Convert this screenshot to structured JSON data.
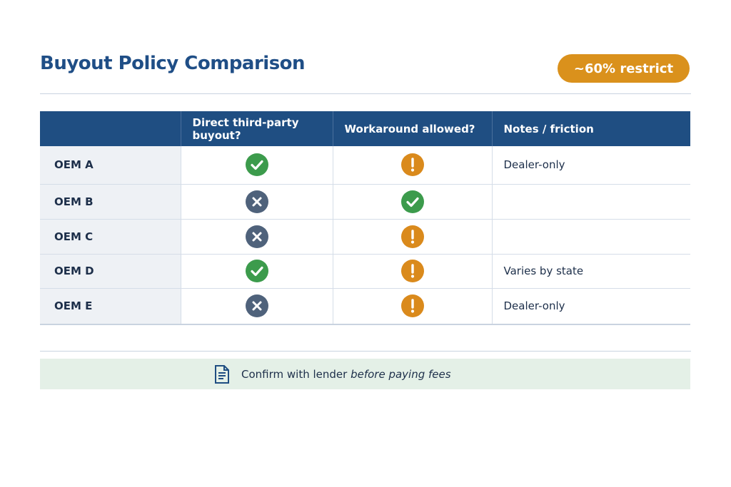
{
  "header": {
    "title": "Buyout Policy Comparison",
    "badge": "~60% restrict"
  },
  "table": {
    "columns": [
      "Direct third-party buyout?",
      "Workaround allowed?",
      "Notes / friction"
    ],
    "rows": [
      {
        "label": "OEM A",
        "notes": "Dealer-only"
      },
      {
        "label": "OEM B"
      },
      {
        "label": "OEM C"
      },
      {
        "label": "OEM D",
        "notes": "Varies by state"
      },
      {
        "label": "OEM E",
        "notes": "Dealer-only"
      }
    ]
  },
  "footer": {
    "text": "Confirm with lender",
    "emphasis": "before paying fees"
  }
}
